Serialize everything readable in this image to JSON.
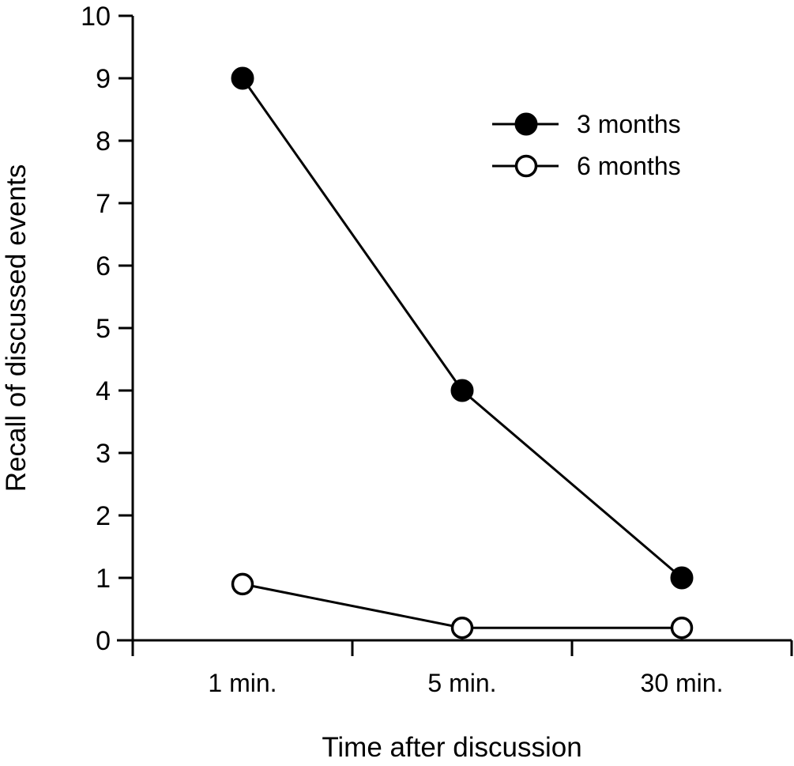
{
  "chart_data": {
    "type": "line",
    "title": "",
    "xlabel": "Time after discussion",
    "ylabel": "Recall of discussed events",
    "categories": [
      "1 min.",
      "5 min.",
      "30 min."
    ],
    "ylim": [
      0,
      10
    ],
    "yticks": [
      "0",
      "1",
      "2",
      "3",
      "4",
      "5",
      "6",
      "7",
      "8",
      "9",
      "10"
    ],
    "grid": false,
    "legend_position": "top-right",
    "series": [
      {
        "name": "3 months",
        "marker": "filled-circle",
        "color": "#000000",
        "values": [
          9.0,
          4.0,
          1.0
        ]
      },
      {
        "name": "6 months",
        "marker": "open-circle",
        "color": "#000000",
        "values": [
          0.9,
          0.2,
          0.2
        ]
      }
    ]
  }
}
